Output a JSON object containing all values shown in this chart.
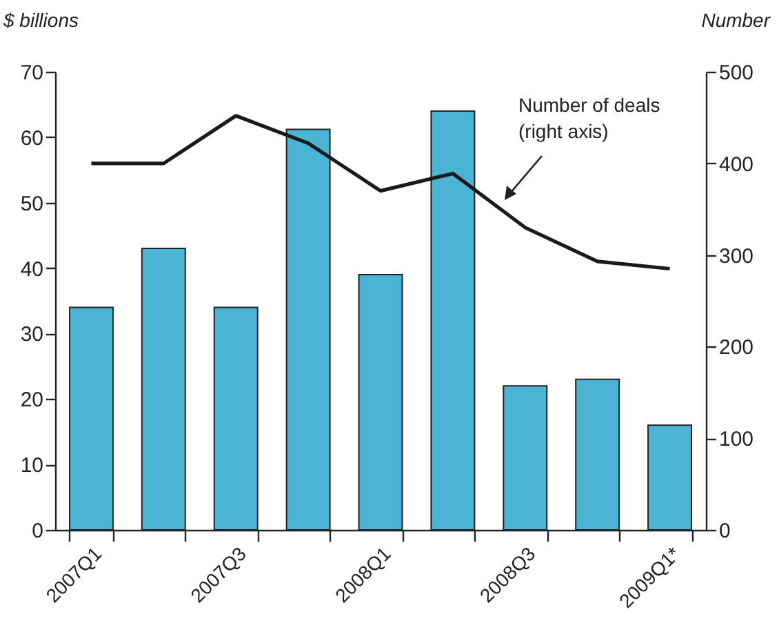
{
  "chart_data": {
    "type": "bar",
    "xlabel": null,
    "ylabel": "$ billions",
    "y2label": "Number",
    "categories": [
      "2007Q1",
      null,
      "2007Q3",
      null,
      "2008Q1",
      null,
      "2008Q3",
      null,
      "2009Q1*"
    ],
    "series": [
      {
        "color": "#4bb3d4",
        "values": [
          34,
          43,
          34,
          61.2,
          39,
          64,
          22,
          23,
          16
        ]
      },
      {
        "type": "line",
        "name": "Number of deals (right axis)",
        "axis": "y2",
        "color": "#1a1a1a",
        "values": [
          400,
          400,
          452,
          422,
          370,
          389,
          330,
          293,
          285
        ]
      }
    ],
    "ylim": [
      0,
      70
    ],
    "yticks": [
      0,
      10,
      20,
      30,
      40,
      50,
      60,
      70
    ],
    "y2lim": [
      0,
      500
    ],
    "y2ticks": [
      0,
      100,
      200,
      300,
      400,
      500
    ],
    "grid": false,
    "legend": false,
    "marker": "none",
    "line_style": "solid"
  }
}
